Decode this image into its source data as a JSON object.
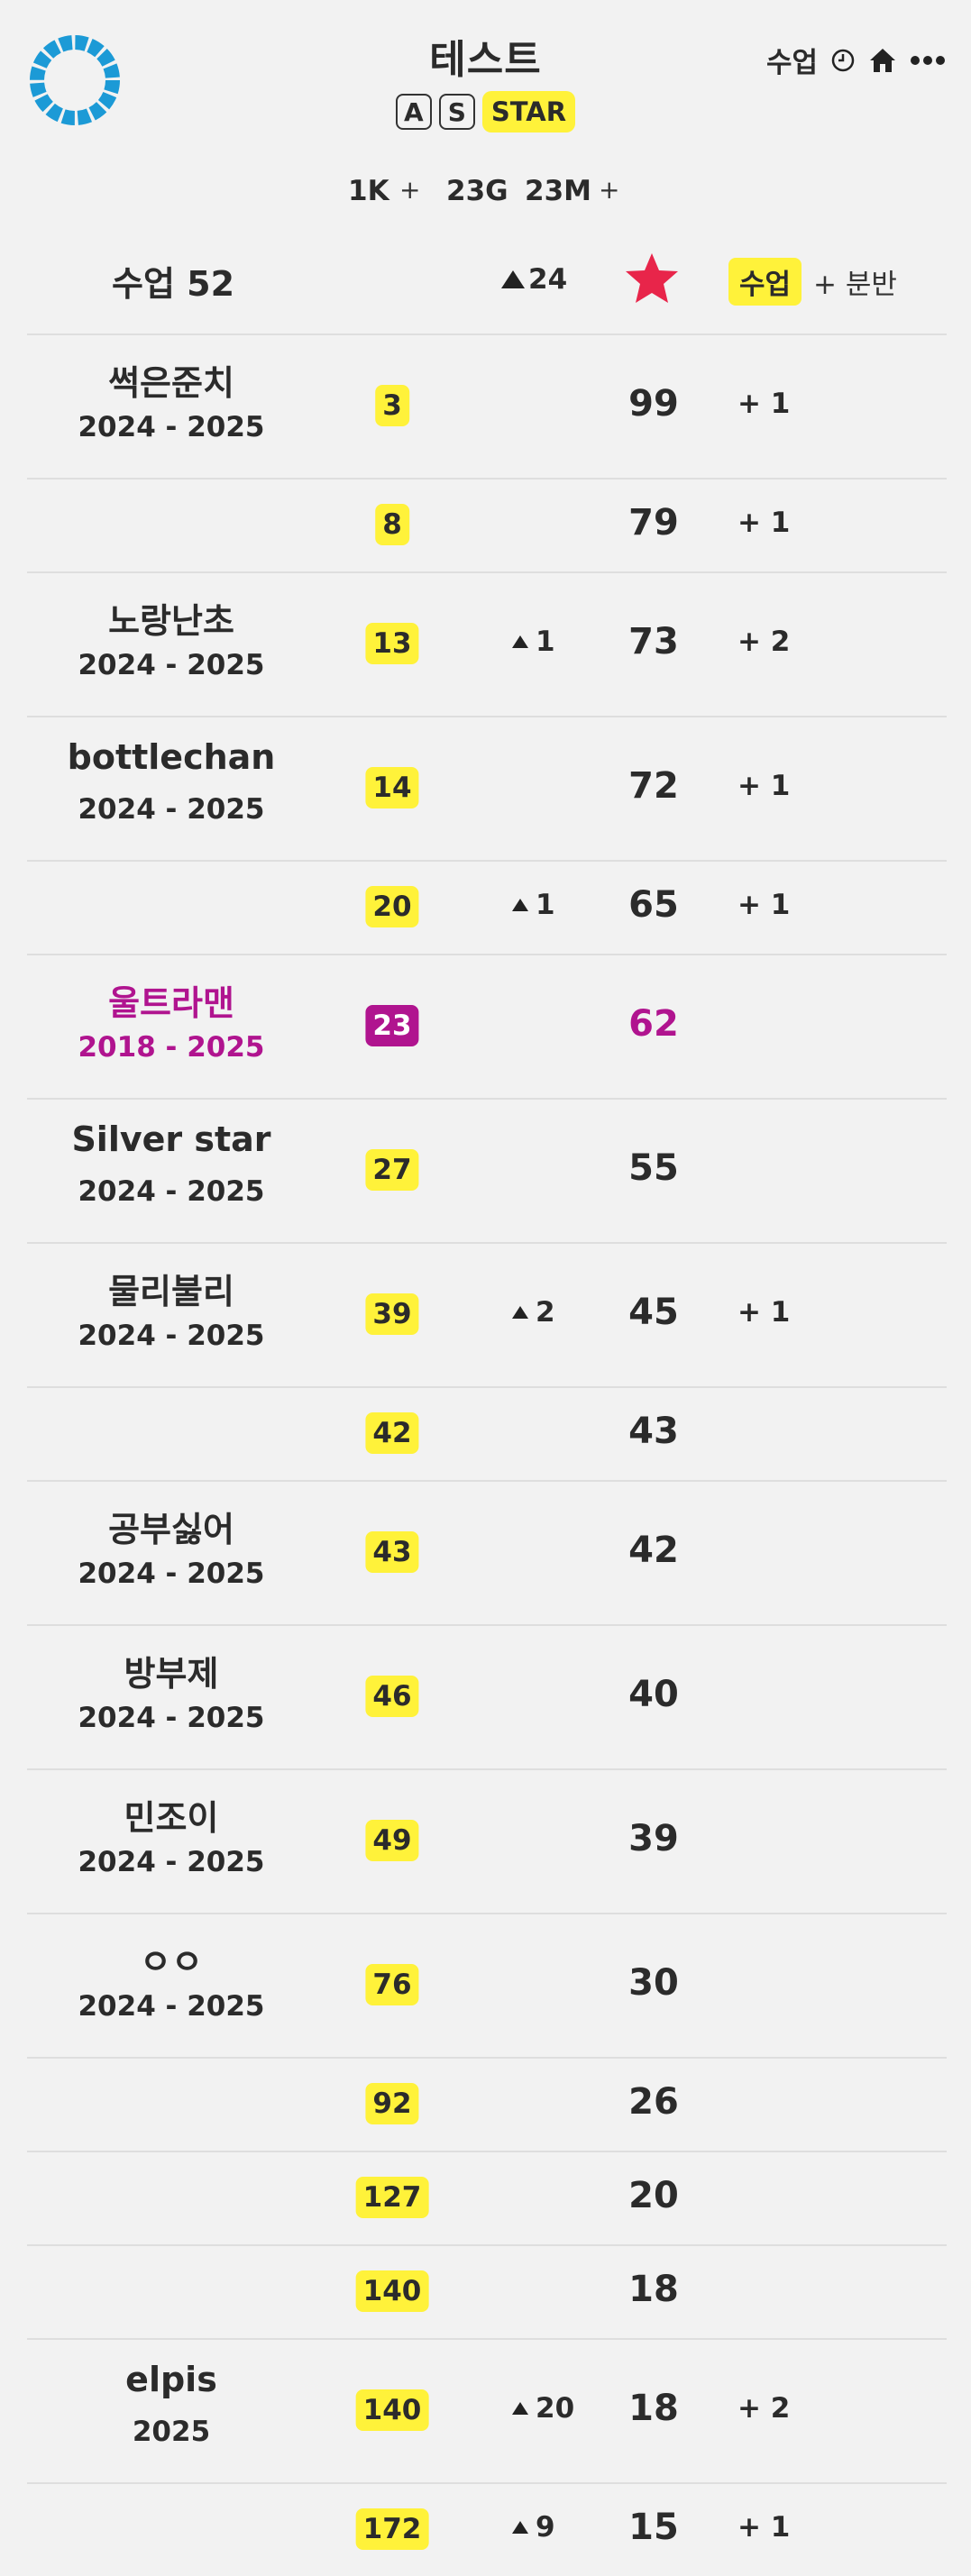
{
  "header": {
    "title": "테스트",
    "badges": [
      "A",
      "S"
    ],
    "star_badge": "STAR",
    "menu_label": "수업",
    "icons": [
      "clock-icon",
      "home-icon",
      "more-icon"
    ]
  },
  "stats": [
    {
      "value": "1K",
      "plus": "+"
    },
    {
      "value": "23G",
      "plus": ""
    },
    {
      "value": "23M",
      "plus": "+"
    }
  ],
  "list_header": {
    "count": "수업 52",
    "rise": "24",
    "sort_label": "수업",
    "add_label": "+ 분반"
  },
  "colors": {
    "accent": "#fff23a",
    "highlight": "#b0148f",
    "star": "#e8254a",
    "logo": "#1c9ad6"
  },
  "rows": [
    {
      "name": "썩은준치",
      "years": "2024 - 2025",
      "rank": "3",
      "change": "",
      "score": "99",
      "sub": "+ 1"
    },
    {
      "name": "",
      "years": "",
      "rank": "8",
      "change": "",
      "score": "79",
      "sub": "+ 1"
    },
    {
      "name": "노랑난초",
      "years": "2024 - 2025",
      "rank": "13",
      "change": "1",
      "score": "73",
      "sub": "+ 2"
    },
    {
      "name": "bottlechan",
      "years": "2024 - 2025",
      "rank": "14",
      "change": "",
      "score": "72",
      "sub": "+ 1"
    },
    {
      "name": "",
      "years": "",
      "rank": "20",
      "change": "1",
      "score": "65",
      "sub": "+ 1"
    },
    {
      "name": "울트라맨",
      "years": "2018 - 2025",
      "rank": "23",
      "change": "",
      "score": "62",
      "sub": "",
      "highlight": true
    },
    {
      "name": "Silver star",
      "years": "2024 - 2025",
      "rank": "27",
      "change": "",
      "score": "55",
      "sub": ""
    },
    {
      "name": "물리불리",
      "years": "2024 - 2025",
      "rank": "39",
      "change": "2",
      "score": "45",
      "sub": "+ 1"
    },
    {
      "name": "",
      "years": "",
      "rank": "42",
      "change": "",
      "score": "43",
      "sub": ""
    },
    {
      "name": "공부싫어",
      "years": "2024 - 2025",
      "rank": "43",
      "change": "",
      "score": "42",
      "sub": ""
    },
    {
      "name": "방부제",
      "years": "2024 - 2025",
      "rank": "46",
      "change": "",
      "score": "40",
      "sub": ""
    },
    {
      "name": "민조이",
      "years": "2024 - 2025",
      "rank": "49",
      "change": "",
      "score": "39",
      "sub": ""
    },
    {
      "name": "ㅇㅇ",
      "years": "2024 - 2025",
      "rank": "76",
      "change": "",
      "score": "30",
      "sub": ""
    },
    {
      "name": "",
      "years": "",
      "rank": "92",
      "change": "",
      "score": "26",
      "sub": ""
    },
    {
      "name": "",
      "years": "",
      "rank": "127",
      "change": "",
      "score": "20",
      "sub": ""
    },
    {
      "name": "",
      "years": "",
      "rank": "140",
      "change": "",
      "score": "18",
      "sub": ""
    },
    {
      "name": "elpis",
      "years": "2025",
      "rank": "140",
      "change": "20",
      "score": "18",
      "sub": "+ 2"
    },
    {
      "name": "",
      "years": "",
      "rank": "172",
      "change": "9",
      "score": "15",
      "sub": "+ 1"
    }
  ]
}
